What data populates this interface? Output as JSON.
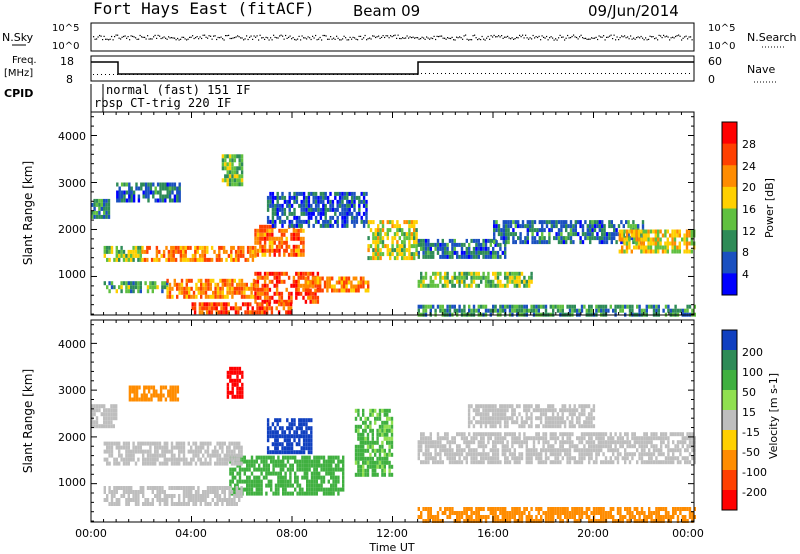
{
  "header": {
    "station": "Fort Hays East (fitACF)",
    "beam": "Beam 09",
    "date": "09/Jun/2014"
  },
  "noise_panel": {
    "left_label": "N.Sky",
    "right_label": "N.Search",
    "left_ticks": [
      "10^5",
      "10^0"
    ],
    "right_ticks": [
      "10^5",
      "10^0"
    ]
  },
  "freq_panel": {
    "left_label_1": "Freq.",
    "left_label_2": "[MHz]",
    "right_label": "Nave",
    "left_ticks": [
      "18",
      "8"
    ],
    "right_ticks": [
      "60",
      "0"
    ]
  },
  "cpid": {
    "label": "CPID",
    "program_1": "normal (fast) 151 IF",
    "program_2": "rbsp CT-trig 220 IF"
  },
  "axes": {
    "ylabel": "Slant Range [km]",
    "xlabel": "Time UT",
    "yticks": [
      "4000",
      "3000",
      "2000",
      "1000"
    ],
    "xticks": [
      "00:00",
      "04:00",
      "08:00",
      "12:00",
      "16:00",
      "20:00",
      "00:00"
    ]
  },
  "power_colorbar": {
    "label": "Power [dB]",
    "ticks": [
      "28",
      "24",
      "20",
      "16",
      "12",
      "8",
      "4"
    ],
    "colors": [
      "#ff0000",
      "#ff4000",
      "#ff8c00",
      "#ffd000",
      "#60c040",
      "#2e8b57",
      "#1a50c0",
      "#0000ff"
    ]
  },
  "velocity_colorbar": {
    "label": "Velocity [m s-1]",
    "ticks": [
      "200",
      "100",
      "50",
      "15",
      "-15",
      "-50",
      "-100",
      "-200"
    ],
    "colors": [
      "#1040c0",
      "#2e8b57",
      "#40b040",
      "#90e050",
      "#bebebe",
      "#ffd000",
      "#ff8c00",
      "#ff4000",
      "#ff0000"
    ]
  },
  "chart_data": [
    {
      "type": "heatmap",
      "name": "power",
      "xlim": [
        0,
        24
      ],
      "ylim": [
        180,
        4500
      ],
      "units": "dB",
      "bands": [
        {
          "t": [
            0.0,
            0.7
          ],
          "r": [
            2250,
            2650
          ],
          "v": 10
        },
        {
          "t": [
            0.5,
            2.0
          ],
          "r": [
            1350,
            1650
          ],
          "v": 15
        },
        {
          "t": [
            2.0,
            6.5
          ],
          "r": [
            1350,
            1650
          ],
          "v": 22
        },
        {
          "t": [
            6.5,
            8.5
          ],
          "r": [
            1500,
            2100
          ],
          "v": 24
        },
        {
          "t": [
            0.5,
            3.0
          ],
          "r": [
            700,
            900
          ],
          "v": 12
        },
        {
          "t": [
            3.0,
            6.5
          ],
          "r": [
            550,
            950
          ],
          "v": 22
        },
        {
          "t": [
            6.5,
            9.0
          ],
          "r": [
            500,
            1100
          ],
          "v": 26
        },
        {
          "t": [
            8.5,
            11.0
          ],
          "r": [
            700,
            1000
          ],
          "v": 22
        },
        {
          "t": [
            4.0,
            8.0
          ],
          "r": [
            200,
            450
          ],
          "v": 26
        },
        {
          "t": [
            11.0,
            13.0
          ],
          "r": [
            1400,
            2200
          ],
          "v": 16
        },
        {
          "t": [
            13.0,
            16.5
          ],
          "r": [
            1400,
            1800
          ],
          "v": 8
        },
        {
          "t": [
            16.0,
            22.0
          ],
          "r": [
            1700,
            2200
          ],
          "v": 8
        },
        {
          "t": [
            21.0,
            24.0
          ],
          "r": [
            1500,
            2000
          ],
          "v": 18
        },
        {
          "t": [
            13.0,
            17.5
          ],
          "r": [
            800,
            1100
          ],
          "v": 14
        },
        {
          "t": [
            1.0,
            3.5
          ],
          "r": [
            2600,
            3000
          ],
          "v": 8
        },
        {
          "t": [
            5.2,
            6.0
          ],
          "r": [
            3000,
            3600
          ],
          "v": 14
        },
        {
          "t": [
            7.0,
            11.0
          ],
          "r": [
            2100,
            2800
          ],
          "v": 6
        },
        {
          "t": [
            13.0,
            24.0
          ],
          "r": [
            180,
            400
          ],
          "v": 10
        }
      ]
    },
    {
      "type": "heatmap",
      "name": "velocity",
      "xlim": [
        0,
        24
      ],
      "ylim": [
        180,
        4500
      ],
      "units": "m s-1",
      "bands": [
        {
          "t": [
            5.4,
            6.0
          ],
          "r": [
            2900,
            3500
          ],
          "v": -200
        },
        {
          "t": [
            7.0,
            8.8
          ],
          "r": [
            1700,
            2400
          ],
          "v": 200
        },
        {
          "t": [
            5.5,
            10.0
          ],
          "r": [
            800,
            1600
          ],
          "v": 60
        },
        {
          "t": [
            10.5,
            12.0
          ],
          "r": [
            1200,
            2600
          ],
          "v": 40
        },
        {
          "t": [
            0.5,
            6.0
          ],
          "r": [
            1400,
            1900
          ],
          "v": 0
        },
        {
          "t": [
            0.5,
            6.0
          ],
          "r": [
            600,
            950
          ],
          "v": 0
        },
        {
          "t": [
            13.0,
            24.0
          ],
          "r": [
            1500,
            2100
          ],
          "v": 0
        },
        {
          "t": [
            0.0,
            1.0
          ],
          "r": [
            2200,
            2700
          ],
          "v": 0
        },
        {
          "t": [
            1.5,
            3.5
          ],
          "r": [
            2800,
            3100
          ],
          "v": -60
        },
        {
          "t": [
            13.0,
            24.0
          ],
          "r": [
            180,
            500
          ],
          "v": -60
        },
        {
          "t": [
            15.0,
            20.0
          ],
          "r": [
            2200,
            2700
          ],
          "v": 0
        }
      ]
    }
  ]
}
